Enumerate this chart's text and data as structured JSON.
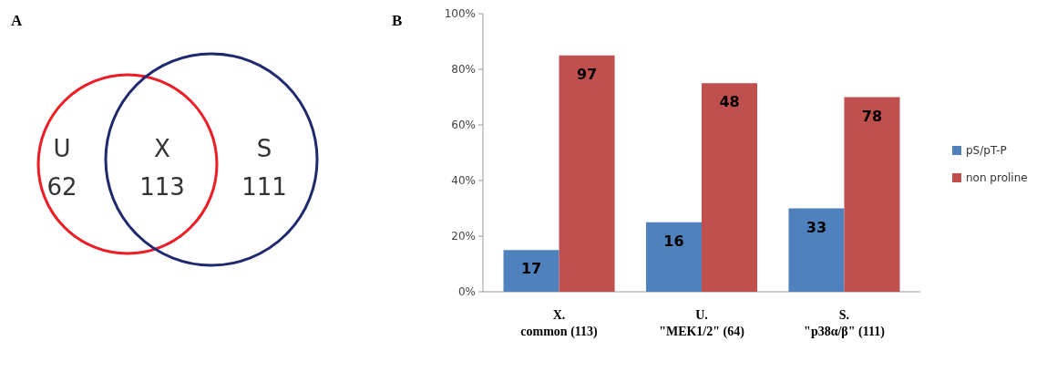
{
  "chart_data": [
    {
      "type": "other",
      "title": "A",
      "categories": [
        "U",
        "X",
        "S"
      ],
      "values": [
        62,
        113,
        111
      ],
      "data_labels": true,
      "colors": [
        "#ee1c25",
        null,
        "#1f2a6e"
      ]
    },
    {
      "type": "bar",
      "title": "B",
      "categories": [
        "X.\ncommon (113)",
        "U.\n\"MEK1/2\" (64)",
        "S.\n\"p38α/β\" (111)"
      ],
      "series": [
        {
          "name": "pS/pT-P",
          "color": "#4f81bd",
          "values": [
            15,
            25,
            30
          ]
        },
        {
          "name": "non proline",
          "color": "#c0504d",
          "values": [
            85,
            75,
            70
          ]
        }
      ],
      "annotations": [
        {
          "text": "17",
          "x": "X.\ncommon (113)",
          "y": 15
        },
        {
          "text": "97",
          "x": "X.\ncommon (113)",
          "y": 85
        },
        {
          "text": "16",
          "x": "U.\n\"MEK1/2\" (64)",
          "y": 25
        },
        {
          "text": "48",
          "x": "U.\n\"MEK1/2\" (64)",
          "y": 75
        },
        {
          "text": "33",
          "x": "S.\n\"p38α/β\" (111)",
          "y": 30
        },
        {
          "text": "78",
          "x": "S.\n\"p38α/β\" (111)",
          "y": 70
        }
      ],
      "ylim": [
        0,
        100
      ],
      "yticks": [
        {
          "value": 0,
          "label": "0%"
        },
        {
          "value": 20,
          "label": "20%"
        },
        {
          "value": 40,
          "label": "40%"
        },
        {
          "value": 60,
          "label": "60%"
        },
        {
          "value": 80,
          "label": "80%"
        },
        {
          "value": 100,
          "label": "100%"
        }
      ],
      "legend": "right"
    }
  ]
}
